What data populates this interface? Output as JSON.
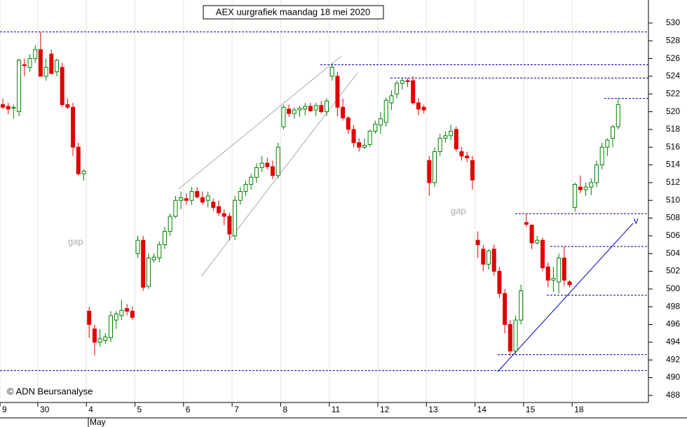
{
  "chart_data": {
    "type": "candlestick",
    "title": "AEX uurgrafiek maandag 18 mei 2020",
    "copyright": "© ADN Beursanalyse",
    "month_label": "May",
    "annotations": [
      "gap",
      "gap",
      "v"
    ],
    "up_color": "#008000",
    "down_color": "#e00000",
    "level_color": "#0000aa",
    "grid": true,
    "ylim": [
      487.2,
      532.6
    ],
    "yticks": [
      488,
      490,
      492,
      494,
      496,
      498,
      500,
      502,
      504,
      506,
      508,
      510,
      512,
      514,
      516,
      518,
      520,
      522,
      524,
      526,
      528,
      530
    ],
    "levels": [
      529,
      525.3,
      523.8,
      521.5,
      508.5,
      504.8,
      499.3,
      492.6,
      490.8
    ],
    "categories": [
      "9",
      null,
      null,
      null,
      null,
      null,
      null,
      "30",
      null,
      null,
      null,
      null,
      null,
      null,
      null,
      null,
      "4",
      null,
      null,
      null,
      null,
      null,
      null,
      null,
      null,
      "5",
      null,
      null,
      null,
      null,
      null,
      null,
      null,
      null,
      "6",
      null,
      null,
      null,
      null,
      null,
      null,
      null,
      null,
      "7",
      null,
      null,
      null,
      null,
      null,
      null,
      null,
      null,
      "8",
      null,
      null,
      null,
      null,
      null,
      null,
      null,
      null,
      "11",
      null,
      null,
      null,
      null,
      null,
      null,
      null,
      null,
      "12",
      null,
      null,
      null,
      null,
      null,
      null,
      null,
      null,
      "13",
      null,
      null,
      null,
      null,
      null,
      null,
      null,
      null,
      "14",
      null,
      null,
      null,
      null,
      null,
      null,
      null,
      null,
      "15",
      null,
      null,
      null,
      null,
      null,
      null,
      null,
      null,
      "18",
      null,
      null,
      null,
      null,
      null,
      null,
      null,
      null
    ],
    "open": [
      520.8,
      520.6,
      520.4,
      520,
      525.3,
      525,
      526,
      527,
      524,
      526.5,
      524.5,
      525,
      520.8,
      520.5,
      516,
      513,
      497.5,
      495.5,
      494,
      494.2,
      494.5,
      496.5,
      497,
      497.8,
      497.5,
      504,
      505.5,
      500.3,
      503.3,
      503.5,
      505,
      506.5,
      508.2,
      510,
      510.2,
      510,
      511,
      510.3,
      510,
      509.8,
      509.3,
      508.5,
      508.2,
      506,
      510,
      511,
      511.8,
      512.6,
      513.7,
      514.2,
      513.8,
      512.8,
      518.3,
      520.3,
      519.8,
      520.2,
      520.3,
      520.6,
      520.2,
      520.7,
      520,
      524,
      524,
      520.5,
      519.3,
      518,
      516.5,
      516,
      516.3,
      517.8,
      518.5,
      518.8,
      521,
      522,
      523.2,
      523.5,
      523.5,
      521,
      520.5,
      514.5,
      512,
      515.5,
      517,
      517.3,
      518,
      515.5,
      515,
      514.5,
      505.5,
      504.5,
      502.8,
      504.5,
      502,
      499.5,
      496,
      493,
      496.5,
      507.5,
      507.2,
      505.2,
      505.5,
      502.5,
      501,
      500.8,
      503.5,
      500.8,
      509.2,
      511.5,
      511.2,
      511.5,
      512,
      514,
      516,
      517,
      518.3
    ],
    "high": [
      521.5,
      521,
      520.8,
      526,
      526,
      526.5,
      527.5,
      529,
      526,
      527,
      526,
      525.5,
      521.5,
      521,
      516.5,
      513.5,
      498,
      496,
      495.5,
      495,
      497.5,
      497.5,
      498.8,
      498.3,
      498,
      506,
      506,
      504,
      504,
      505.4,
      507,
      508.5,
      510.5,
      511,
      510.8,
      511.5,
      511.5,
      511,
      511,
      510.2,
      510,
      509,
      508.6,
      510.5,
      511.5,
      512.2,
      513,
      514.2,
      515,
      514.8,
      514.5,
      516.5,
      520.8,
      520.8,
      520.5,
      520.6,
      521,
      521,
      521,
      521.2,
      521.5,
      525.5,
      524.5,
      521.5,
      519.5,
      518.5,
      517,
      517,
      518,
      519,
      520,
      521.6,
      522.4,
      523.5,
      523.8,
      523.8,
      524,
      521.5,
      520.8,
      515,
      516,
      517.5,
      517.8,
      518.5,
      518.3,
      516,
      515.5,
      515,
      506.5,
      505,
      504.5,
      505,
      502.5,
      500,
      496.5,
      497,
      500.5,
      508.5,
      507.3,
      506,
      505.8,
      503,
      502.5,
      504,
      504.8,
      501,
      512,
      512.8,
      512,
      512.5,
      514.5,
      516.5,
      517,
      518.5,
      521.5
    ],
    "low": [
      520.3,
      519.7,
      519.2,
      519.5,
      524,
      524.5,
      525.5,
      524,
      523.5,
      524.5,
      524,
      520.5,
      520.3,
      515,
      512.8,
      512.2,
      494.5,
      492.5,
      493.5,
      493.8,
      494,
      495.5,
      496.5,
      497,
      496.5,
      503.5,
      499.8,
      500,
      503,
      503,
      504.5,
      506,
      508,
      509,
      509.5,
      509.5,
      510.2,
      509.5,
      509.2,
      508.8,
      508.3,
      507.2,
      505.5,
      505.5,
      509.5,
      510.5,
      511.2,
      512,
      513.2,
      513.5,
      512.4,
      512.5,
      518,
      519.4,
      519.2,
      519.4,
      519.6,
      520,
      519.5,
      519.8,
      519.5,
      523.5,
      519.5,
      519,
      517.5,
      516,
      515.5,
      515.8,
      516,
      517.5,
      517.5,
      518.3,
      520.2,
      521.5,
      522.5,
      522.8,
      520.8,
      519.6,
      519.8,
      510.5,
      511.5,
      515,
      516.5,
      516.8,
      515.5,
      514.5,
      514.3,
      511.2,
      503.5,
      502,
      502.2,
      501.5,
      499,
      495,
      492.5,
      492.6,
      496,
      507,
      504.5,
      505,
      502,
      500.2,
      499.7,
      499.5,
      500.3,
      500.2,
      508.7,
      510.8,
      510.5,
      510.6,
      511.5,
      513.5,
      515,
      516,
      518
    ],
    "close": [
      520.5,
      520.3,
      520.5,
      525.8,
      525.2,
      526,
      527,
      524,
      525,
      524.3,
      525.8,
      520.8,
      520.5,
      516,
      513,
      513.3,
      496,
      494,
      494.4,
      494.6,
      497,
      497.2,
      497.6,
      497.5,
      496.8,
      505.5,
      500.2,
      503.5,
      503.6,
      505,
      506.5,
      508.2,
      510,
      510.3,
      510,
      511,
      510.4,
      509.8,
      510.5,
      509.2,
      508.6,
      508.2,
      506.2,
      510,
      511,
      511.8,
      512.6,
      513.7,
      514.2,
      513.8,
      512.8,
      516,
      520.5,
      519.8,
      520.2,
      520.4,
      520.6,
      520.1,
      520.7,
      520,
      521.2,
      525,
      520.5,
      519.3,
      518,
      516.5,
      516,
      516.2,
      517.8,
      518.6,
      519.2,
      521.3,
      521.8,
      523.2,
      523.5,
      523.4,
      521,
      520.3,
      520.2,
      512,
      515.5,
      517,
      517.3,
      517.8,
      515.8,
      515,
      514.8,
      512.3,
      505,
      502.8,
      504.3,
      502,
      499.5,
      496,
      493,
      496.5,
      499.8,
      507.3,
      505.2,
      505.5,
      502.4,
      501,
      501.2,
      503.5,
      501,
      500.5,
      511.8,
      511.2,
      511.5,
      512,
      514,
      516,
      516.8,
      518.3,
      520.8
    ]
  }
}
